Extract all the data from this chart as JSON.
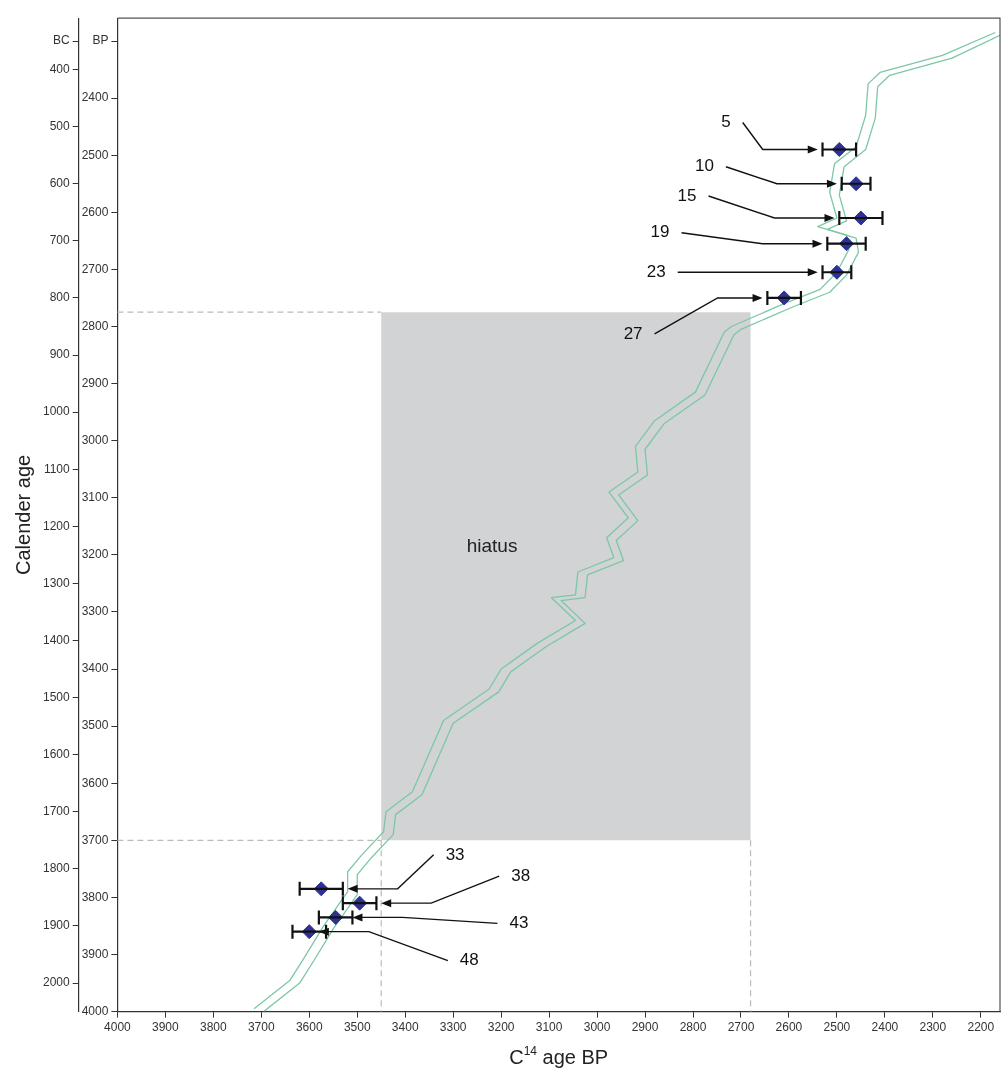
{
  "chart_data": {
    "type": "scatter",
    "xlabel": "C$^{14}$ age BP",
    "y2label": "Calender age",
    "xlim": [
      4000,
      2160
    ],
    "xticks": [
      4000,
      3900,
      3800,
      3700,
      3600,
      3500,
      3400,
      3300,
      3200,
      3100,
      3000,
      2900,
      2800,
      2700,
      2600,
      2500,
      2400,
      2300,
      2200
    ],
    "ylim": [
      4000,
      2260
    ],
    "yticks": [
      {
        "value": 2300,
        "label": "BP"
      },
      2400,
      2500,
      2600,
      2700,
      2800,
      2900,
      3000,
      3100,
      3200,
      3300,
      3400,
      3500,
      3600,
      3700,
      3800,
      3900,
      4000
    ],
    "y2lim": [
      2050,
      310
    ],
    "y2ticks": [
      {
        "value": 350,
        "label": "BC"
      },
      400,
      500,
      600,
      700,
      800,
      900,
      1000,
      1100,
      1200,
      1300,
      1400,
      1500,
      1600,
      1700,
      1800,
      1900,
      2000
    ],
    "grid": false,
    "legend": false,
    "series": [
      {
        "type": "line",
        "color": "#7cc8a4",
        "marker": "none",
        "line_style": "solid",
        "x": [
          2170,
          2280,
          2410,
          2435,
          2440,
          2460,
          2505,
          2515,
          2500,
          2540,
          2480,
          2475,
          2500,
          2535,
          2610,
          2720,
          2735,
          2795,
          2880,
          2920,
          2915,
          2975,
          2935,
          2980,
          2965,
          3040,
          3045,
          3095,
          3045,
          3125,
          3200,
          3225,
          3320,
          3385,
          3440,
          3445,
          3490,
          3520,
          3520,
          3570,
          3610,
          3640,
          3715
        ],
        "values": [
          2285,
          2325,
          2355,
          2375,
          2430,
          2485,
          2515,
          2565,
          2610,
          2625,
          2640,
          2665,
          2705,
          2735,
          2760,
          2800,
          2810,
          2915,
          2965,
          3010,
          3055,
          3090,
          3135,
          3170,
          3205,
          3230,
          3270,
          3275,
          3315,
          3355,
          3400,
          3435,
          3490,
          3615,
          3650,
          3685,
          3725,
          3755,
          3790,
          3850,
          3905,
          3945,
          3995
        ]
      },
      {
        "type": "line",
        "color": "#7cc8a4",
        "marker": "none",
        "line_style": "solid",
        "x": [
          2160,
          2260,
          2390,
          2415,
          2420,
          2440,
          2485,
          2495,
          2480,
          2520,
          2460,
          2455,
          2480,
          2515,
          2590,
          2700,
          2715,
          2775,
          2860,
          2900,
          2895,
          2955,
          2915,
          2960,
          2945,
          3020,
          3025,
          3075,
          3025,
          3105,
          3180,
          3205,
          3300,
          3365,
          3420,
          3425,
          3470,
          3500,
          3500,
          3550,
          3590,
          3620,
          3695
        ],
        "values": [
          2290,
          2330,
          2360,
          2380,
          2435,
          2490,
          2520,
          2570,
          2615,
          2630,
          2645,
          2670,
          2710,
          2740,
          2765,
          2805,
          2815,
          2920,
          2970,
          3015,
          3060,
          3095,
          3140,
          3175,
          3210,
          3235,
          3275,
          3280,
          3320,
          3360,
          3405,
          3440,
          3495,
          3620,
          3655,
          3690,
          3730,
          3760,
          3795,
          3855,
          3910,
          3950,
          4000
        ]
      },
      {
        "type": "scatter",
        "color": "#2e3192",
        "marker": "diamond",
        "x": [
          2495,
          2460,
          2450,
          2480,
          2500,
          2610,
          3575,
          3495,
          3545,
          3600
        ],
        "values": [
          2490,
          2550,
          2610,
          2655,
          2705,
          2750,
          3785,
          3810,
          3835,
          3860
        ],
        "xerrors": [
          35,
          30,
          45,
          40,
          30,
          35,
          45,
          35,
          35,
          35
        ]
      }
    ],
    "ref_lines": [
      {
        "axis": "x",
        "value": 3450,
        "color": "#bbbbbb",
        "line_style": "dashed"
      },
      {
        "axis": "x",
        "value": 2680,
        "color": "#bbbbbb",
        "line_style": "dashed"
      },
      {
        "axis": "y",
        "value": 2775,
        "color": "#bbbbbb",
        "line_style": "dashed"
      },
      {
        "axis": "y",
        "value": 3700,
        "color": "#bbbbbb",
        "line_style": "dashed"
      }
    ],
    "bands": [
      {
        "axis": "y",
        "from": 2775,
        "to": 3700,
        "label": "hiatus",
        "color": "#d1d3d4"
      }
    ],
    "annotations": [
      {
        "text": "5",
        "x": 2540,
        "y": 2490
      },
      {
        "text": "10",
        "x": 2500,
        "y": 2550
      },
      {
        "text": "15",
        "x": 2505,
        "y": 2610
      },
      {
        "text": "19",
        "x": 2530,
        "y": 2655
      },
      {
        "text": "23",
        "x": 2540,
        "y": 2705
      },
      {
        "text": "27",
        "x": 2655,
        "y": 2750
      },
      {
        "text": "33",
        "x": 3520,
        "y": 3785
      },
      {
        "text": "38",
        "x": 3450,
        "y": 3810
      },
      {
        "text": "43",
        "x": 3510,
        "y": 3835
      },
      {
        "text": "48",
        "x": 3580,
        "y": 3860
      }
    ]
  }
}
